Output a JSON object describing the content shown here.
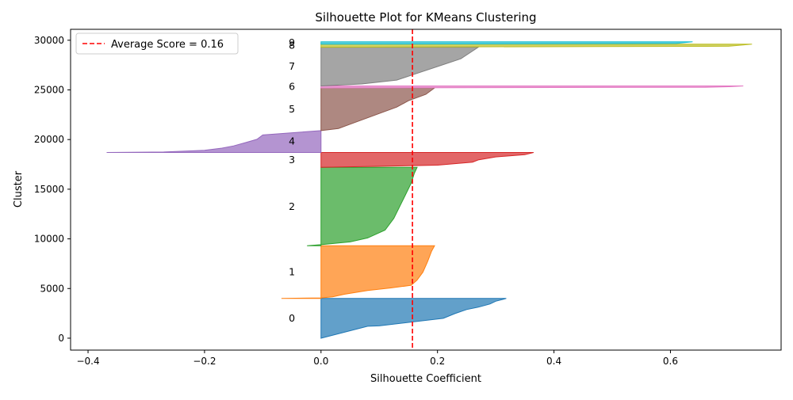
{
  "chart_data": {
    "type": "area",
    "title": "Silhouette Plot for KMeans Clustering",
    "xlabel": "Silhouette Coefficient",
    "ylabel": "Cluster",
    "xlim": [
      -0.43,
      0.79
    ],
    "ylim": [
      -1200,
      31100
    ],
    "x_ticks": [
      -0.4,
      -0.2,
      0.0,
      0.2,
      0.4,
      0.6
    ],
    "x_tick_labels": [
      "−0.4",
      "−0.2",
      "0.0",
      "0.2",
      "0.4",
      "0.6"
    ],
    "y_ticks": [
      0,
      5000,
      10000,
      15000,
      20000,
      25000,
      30000
    ],
    "y_tick_labels": [
      "0",
      "5000",
      "10000",
      "15000",
      "20000",
      "25000",
      "30000"
    ],
    "grid": false,
    "legend": {
      "position": "top-left",
      "label": "Average Score = 0.16"
    },
    "average_line": {
      "value": 0.157,
      "color": "#ff0000",
      "style": "dashed"
    },
    "clusters": [
      {
        "label": "0",
        "color": "#1f77b4",
        "y_start": 0,
        "y_end": 4000,
        "profile": [
          [
            0,
            0.0
          ],
          [
            0.3,
            0.08
          ],
          [
            0.31,
            0.1
          ],
          [
            0.5,
            0.21
          ],
          [
            0.62,
            0.23
          ],
          [
            0.72,
            0.25
          ],
          [
            0.78,
            0.27
          ],
          [
            0.86,
            0.29
          ],
          [
            0.93,
            0.3
          ],
          [
            1,
            0.318
          ]
        ]
      },
      {
        "label": "1",
        "color": "#ff7f0e",
        "y_start": 4000,
        "y_end": 9300,
        "profile": [
          [
            0,
            -0.068
          ],
          [
            0.01,
            0.0
          ],
          [
            0.03,
            0.02
          ],
          [
            0.08,
            0.04
          ],
          [
            0.15,
            0.08
          ],
          [
            0.2,
            0.12
          ],
          [
            0.25,
            0.155
          ],
          [
            0.35,
            0.165
          ],
          [
            0.5,
            0.175
          ],
          [
            0.7,
            0.183
          ],
          [
            0.9,
            0.19
          ],
          [
            1,
            0.195
          ]
        ]
      },
      {
        "label": "2",
        "color": "#2ca02c",
        "y_start": 9300,
        "y_end": 17200,
        "profile": [
          [
            0,
            -0.024
          ],
          [
            0.015,
            0.0
          ],
          [
            0.05,
            0.05
          ],
          [
            0.1,
            0.08
          ],
          [
            0.2,
            0.11
          ],
          [
            0.35,
            0.125
          ],
          [
            0.5,
            0.135
          ],
          [
            0.65,
            0.145
          ],
          [
            0.8,
            0.155
          ],
          [
            0.92,
            0.16
          ],
          [
            1,
            0.165
          ]
        ]
      },
      {
        "label": "3",
        "color": "#d62728",
        "y_start": 17200,
        "y_end": 18700,
        "profile": [
          [
            0,
            0.0
          ],
          [
            0.15,
            0.2
          ],
          [
            0.35,
            0.26
          ],
          [
            0.5,
            0.27
          ],
          [
            0.7,
            0.3
          ],
          [
            0.85,
            0.35
          ],
          [
            1,
            0.365
          ]
        ]
      },
      {
        "label": "4",
        "color": "#9467bd",
        "y_start": 18700,
        "y_end": 20900,
        "profile": [
          [
            0,
            -0.368
          ],
          [
            0.02,
            -0.27
          ],
          [
            0.1,
            -0.2
          ],
          [
            0.2,
            -0.17
          ],
          [
            0.3,
            -0.15
          ],
          [
            0.45,
            -0.13
          ],
          [
            0.6,
            -0.11
          ],
          [
            0.8,
            -0.1
          ],
          [
            1,
            -0.0
          ]
        ]
      },
      {
        "label": "5",
        "color": "#8c564b",
        "y_start": 20900,
        "y_end": 25200,
        "profile": [
          [
            0,
            0.0
          ],
          [
            0.05,
            0.03
          ],
          [
            0.15,
            0.05
          ],
          [
            0.3,
            0.08
          ],
          [
            0.4,
            0.1
          ],
          [
            0.55,
            0.13
          ],
          [
            0.7,
            0.15
          ],
          [
            0.85,
            0.18
          ],
          [
            1,
            0.195
          ]
        ]
      },
      {
        "label": "6",
        "color": "#e377c2",
        "y_start": 25200,
        "y_end": 25400,
        "profile": [
          [
            0,
            0.0
          ],
          [
            0.3,
            0.66
          ],
          [
            0.6,
            0.7
          ],
          [
            1,
            0.725
          ]
        ]
      },
      {
        "label": "7",
        "color": "#7f7f7f",
        "y_start": 25400,
        "y_end": 29300,
        "profile": [
          [
            0,
            0.0
          ],
          [
            0.05,
            0.07
          ],
          [
            0.15,
            0.13
          ],
          [
            0.3,
            0.16
          ],
          [
            0.5,
            0.2
          ],
          [
            0.7,
            0.24
          ],
          [
            0.9,
            0.26
          ],
          [
            1,
            0.27
          ]
        ]
      },
      {
        "label": "8",
        "color": "#bcbd22",
        "y_start": 29300,
        "y_end": 29600,
        "profile": [
          [
            0,
            0.0
          ],
          [
            0.3,
            0.7
          ],
          [
            1,
            0.74
          ]
        ]
      },
      {
        "label": "9",
        "color": "#17becf",
        "y_start": 29600,
        "y_end": 29850,
        "profile": [
          [
            0,
            0.0
          ],
          [
            0.3,
            0.61
          ],
          [
            1,
            0.638
          ]
        ]
      }
    ]
  }
}
